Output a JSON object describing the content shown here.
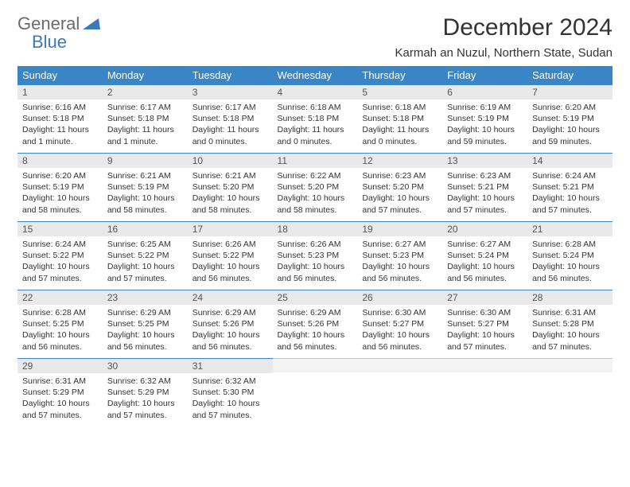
{
  "logo": {
    "line1": "General",
    "line2": "Blue"
  },
  "title": "December 2024",
  "location": "Karmah an Nuzul, Northern State, Sudan",
  "colors": {
    "header_bg": "#3a85c6",
    "header_text": "#ffffff",
    "daynum_bg": "#e9e9e9",
    "daynum_border": "#3a85c6",
    "logo_gray": "#6b6b6b",
    "logo_blue": "#3a7ab8",
    "page_bg": "#ffffff"
  },
  "daysOfWeek": [
    "Sunday",
    "Monday",
    "Tuesday",
    "Wednesday",
    "Thursday",
    "Friday",
    "Saturday"
  ],
  "weeks": [
    [
      {
        "n": "1",
        "sr": "Sunrise: 6:16 AM",
        "ss": "Sunset: 5:18 PM",
        "dl1": "Daylight: 11 hours",
        "dl2": "and 1 minute."
      },
      {
        "n": "2",
        "sr": "Sunrise: 6:17 AM",
        "ss": "Sunset: 5:18 PM",
        "dl1": "Daylight: 11 hours",
        "dl2": "and 1 minute."
      },
      {
        "n": "3",
        "sr": "Sunrise: 6:17 AM",
        "ss": "Sunset: 5:18 PM",
        "dl1": "Daylight: 11 hours",
        "dl2": "and 0 minutes."
      },
      {
        "n": "4",
        "sr": "Sunrise: 6:18 AM",
        "ss": "Sunset: 5:18 PM",
        "dl1": "Daylight: 11 hours",
        "dl2": "and 0 minutes."
      },
      {
        "n": "5",
        "sr": "Sunrise: 6:18 AM",
        "ss": "Sunset: 5:18 PM",
        "dl1": "Daylight: 11 hours",
        "dl2": "and 0 minutes."
      },
      {
        "n": "6",
        "sr": "Sunrise: 6:19 AM",
        "ss": "Sunset: 5:19 PM",
        "dl1": "Daylight: 10 hours",
        "dl2": "and 59 minutes."
      },
      {
        "n": "7",
        "sr": "Sunrise: 6:20 AM",
        "ss": "Sunset: 5:19 PM",
        "dl1": "Daylight: 10 hours",
        "dl2": "and 59 minutes."
      }
    ],
    [
      {
        "n": "8",
        "sr": "Sunrise: 6:20 AM",
        "ss": "Sunset: 5:19 PM",
        "dl1": "Daylight: 10 hours",
        "dl2": "and 58 minutes."
      },
      {
        "n": "9",
        "sr": "Sunrise: 6:21 AM",
        "ss": "Sunset: 5:19 PM",
        "dl1": "Daylight: 10 hours",
        "dl2": "and 58 minutes."
      },
      {
        "n": "10",
        "sr": "Sunrise: 6:21 AM",
        "ss": "Sunset: 5:20 PM",
        "dl1": "Daylight: 10 hours",
        "dl2": "and 58 minutes."
      },
      {
        "n": "11",
        "sr": "Sunrise: 6:22 AM",
        "ss": "Sunset: 5:20 PM",
        "dl1": "Daylight: 10 hours",
        "dl2": "and 58 minutes."
      },
      {
        "n": "12",
        "sr": "Sunrise: 6:23 AM",
        "ss": "Sunset: 5:20 PM",
        "dl1": "Daylight: 10 hours",
        "dl2": "and 57 minutes."
      },
      {
        "n": "13",
        "sr": "Sunrise: 6:23 AM",
        "ss": "Sunset: 5:21 PM",
        "dl1": "Daylight: 10 hours",
        "dl2": "and 57 minutes."
      },
      {
        "n": "14",
        "sr": "Sunrise: 6:24 AM",
        "ss": "Sunset: 5:21 PM",
        "dl1": "Daylight: 10 hours",
        "dl2": "and 57 minutes."
      }
    ],
    [
      {
        "n": "15",
        "sr": "Sunrise: 6:24 AM",
        "ss": "Sunset: 5:22 PM",
        "dl1": "Daylight: 10 hours",
        "dl2": "and 57 minutes."
      },
      {
        "n": "16",
        "sr": "Sunrise: 6:25 AM",
        "ss": "Sunset: 5:22 PM",
        "dl1": "Daylight: 10 hours",
        "dl2": "and 57 minutes."
      },
      {
        "n": "17",
        "sr": "Sunrise: 6:26 AM",
        "ss": "Sunset: 5:22 PM",
        "dl1": "Daylight: 10 hours",
        "dl2": "and 56 minutes."
      },
      {
        "n": "18",
        "sr": "Sunrise: 6:26 AM",
        "ss": "Sunset: 5:23 PM",
        "dl1": "Daylight: 10 hours",
        "dl2": "and 56 minutes."
      },
      {
        "n": "19",
        "sr": "Sunrise: 6:27 AM",
        "ss": "Sunset: 5:23 PM",
        "dl1": "Daylight: 10 hours",
        "dl2": "and 56 minutes."
      },
      {
        "n": "20",
        "sr": "Sunrise: 6:27 AM",
        "ss": "Sunset: 5:24 PM",
        "dl1": "Daylight: 10 hours",
        "dl2": "and 56 minutes."
      },
      {
        "n": "21",
        "sr": "Sunrise: 6:28 AM",
        "ss": "Sunset: 5:24 PM",
        "dl1": "Daylight: 10 hours",
        "dl2": "and 56 minutes."
      }
    ],
    [
      {
        "n": "22",
        "sr": "Sunrise: 6:28 AM",
        "ss": "Sunset: 5:25 PM",
        "dl1": "Daylight: 10 hours",
        "dl2": "and 56 minutes."
      },
      {
        "n": "23",
        "sr": "Sunrise: 6:29 AM",
        "ss": "Sunset: 5:25 PM",
        "dl1": "Daylight: 10 hours",
        "dl2": "and 56 minutes."
      },
      {
        "n": "24",
        "sr": "Sunrise: 6:29 AM",
        "ss": "Sunset: 5:26 PM",
        "dl1": "Daylight: 10 hours",
        "dl2": "and 56 minutes."
      },
      {
        "n": "25",
        "sr": "Sunrise: 6:29 AM",
        "ss": "Sunset: 5:26 PM",
        "dl1": "Daylight: 10 hours",
        "dl2": "and 56 minutes."
      },
      {
        "n": "26",
        "sr": "Sunrise: 6:30 AM",
        "ss": "Sunset: 5:27 PM",
        "dl1": "Daylight: 10 hours",
        "dl2": "and 56 minutes."
      },
      {
        "n": "27",
        "sr": "Sunrise: 6:30 AM",
        "ss": "Sunset: 5:27 PM",
        "dl1": "Daylight: 10 hours",
        "dl2": "and 57 minutes."
      },
      {
        "n": "28",
        "sr": "Sunrise: 6:31 AM",
        "ss": "Sunset: 5:28 PM",
        "dl1": "Daylight: 10 hours",
        "dl2": "and 57 minutes."
      }
    ],
    [
      {
        "n": "29",
        "sr": "Sunrise: 6:31 AM",
        "ss": "Sunset: 5:29 PM",
        "dl1": "Daylight: 10 hours",
        "dl2": "and 57 minutes."
      },
      {
        "n": "30",
        "sr": "Sunrise: 6:32 AM",
        "ss": "Sunset: 5:29 PM",
        "dl1": "Daylight: 10 hours",
        "dl2": "and 57 minutes."
      },
      {
        "n": "31",
        "sr": "Sunrise: 6:32 AM",
        "ss": "Sunset: 5:30 PM",
        "dl1": "Daylight: 10 hours",
        "dl2": "and 57 minutes."
      },
      null,
      null,
      null,
      null
    ]
  ]
}
